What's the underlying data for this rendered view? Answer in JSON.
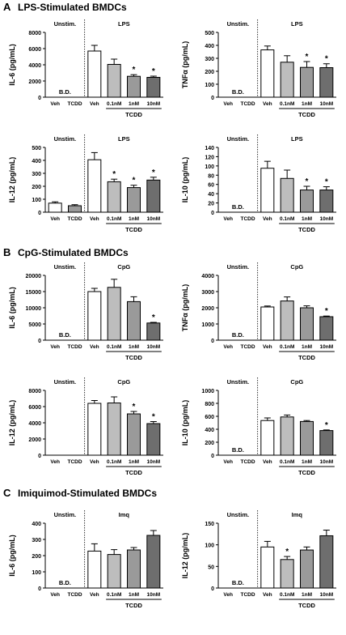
{
  "sections": [
    {
      "letter": "A",
      "title": "LPS-Stimulated BMDCs"
    },
    {
      "letter": "B",
      "title": "CpG-Stimulated BMDCs"
    },
    {
      "letter": "C",
      "title": "Imiquimod-Stimulated BMDCs"
    }
  ],
  "chart_data": [
    {
      "type": "bar",
      "panel": "A",
      "ylabel": "IL-6 (pg/mL)",
      "ylim": [
        0,
        8000
      ],
      "yticks": [
        0,
        2000,
        4000,
        6000,
        8000
      ],
      "yticklabels": [
        "0",
        "2000",
        "4000",
        "6000",
        "8000"
      ],
      "unstim_label": "Unstim.",
      "stim_label": "LPS",
      "treat_label": "TCDD",
      "bd_label": "B.D.",
      "star": "*",
      "categories": [
        "Veh",
        "TCDD",
        "Veh",
        "0.1nM",
        "1nM",
        "10nM"
      ],
      "values": [
        0,
        0,
        5700,
        4050,
        2580,
        2450
      ],
      "errors": [
        0,
        0,
        700,
        650,
        200,
        150
      ],
      "below_detection": [
        true,
        true,
        false,
        false,
        false,
        false
      ],
      "significant": [
        false,
        false,
        false,
        false,
        true,
        true
      ],
      "colors": [
        "#ffffff",
        "#ffffff",
        "#ffffff",
        "#bdbdbd",
        "#9a9a9a",
        "#6e6e6e"
      ]
    },
    {
      "type": "bar",
      "panel": "A",
      "ylabel": "TNFα (pg/mL)",
      "ylim": [
        0,
        500
      ],
      "yticks": [
        0,
        100,
        200,
        300,
        400,
        500
      ],
      "yticklabels": [
        "0",
        "100",
        "200",
        "300",
        "400",
        "500"
      ],
      "unstim_label": "Unstim.",
      "stim_label": "LPS",
      "treat_label": "TCDD",
      "bd_label": "B.D.",
      "star": "*",
      "categories": [
        "Veh",
        "TCDD",
        "Veh",
        "0.1nM",
        "1nM",
        "10nM"
      ],
      "values": [
        0,
        0,
        365,
        270,
        230,
        228
      ],
      "errors": [
        0,
        0,
        30,
        50,
        45,
        30
      ],
      "below_detection": [
        true,
        true,
        false,
        false,
        false,
        false
      ],
      "significant": [
        false,
        false,
        false,
        false,
        true,
        true
      ],
      "colors": [
        "#ffffff",
        "#ffffff",
        "#ffffff",
        "#bdbdbd",
        "#9a9a9a",
        "#6e6e6e"
      ]
    },
    {
      "type": "bar",
      "panel": "A",
      "ylabel": "IL-12 (pg/mL)",
      "ylim": [
        0,
        500
      ],
      "yticks": [
        0,
        100,
        200,
        300,
        400,
        500
      ],
      "yticklabels": [
        "0",
        "100",
        "200",
        "300",
        "400",
        "500"
      ],
      "unstim_label": "Unstim.",
      "stim_label": "LPS",
      "treat_label": "TCDD",
      "bd_label": "",
      "star": "*",
      "categories": [
        "Veh",
        "TCDD",
        "Veh",
        "0.1nM",
        "1nM",
        "10nM"
      ],
      "values": [
        70,
        50,
        405,
        235,
        190,
        248
      ],
      "errors": [
        10,
        8,
        55,
        20,
        18,
        22
      ],
      "below_detection": [
        false,
        false,
        false,
        false,
        false,
        false
      ],
      "significant": [
        false,
        false,
        false,
        true,
        true,
        true
      ],
      "colors": [
        "#ffffff",
        "#9a9a9a",
        "#ffffff",
        "#bdbdbd",
        "#9a9a9a",
        "#6e6e6e"
      ]
    },
    {
      "type": "bar",
      "panel": "A",
      "ylabel": "IL-10 (pg/mL)",
      "ylim": [
        0,
        140
      ],
      "yticks": [
        0,
        20,
        40,
        60,
        80,
        100,
        120,
        140
      ],
      "yticklabels": [
        "0",
        "20",
        "40",
        "60",
        "80",
        "100",
        "120",
        "140"
      ],
      "unstim_label": "Unstim.",
      "stim_label": "LPS",
      "treat_label": "TCDD",
      "bd_label": "B.D.",
      "star": "*",
      "categories": [
        "Veh",
        "TCDD",
        "Veh",
        "0.1nM",
        "1nM",
        "10nM"
      ],
      "values": [
        0,
        0,
        95,
        73,
        48,
        48
      ],
      "errors": [
        0,
        0,
        15,
        18,
        8,
        7
      ],
      "below_detection": [
        true,
        true,
        false,
        false,
        false,
        false
      ],
      "significant": [
        false,
        false,
        false,
        false,
        true,
        true
      ],
      "colors": [
        "#ffffff",
        "#ffffff",
        "#ffffff",
        "#bdbdbd",
        "#9a9a9a",
        "#6e6e6e"
      ]
    },
    {
      "type": "bar",
      "panel": "B",
      "ylabel": "IL-6 (pg/mL)",
      "ylim": [
        0,
        20000
      ],
      "yticks": [
        0,
        5000,
        10000,
        15000,
        20000
      ],
      "yticklabels": [
        "0",
        "5000",
        "10000",
        "15000",
        "20000"
      ],
      "unstim_label": "Unstim.",
      "stim_label": "CpG",
      "treat_label": "TCDD",
      "bd_label": "B.D.",
      "star": "*",
      "categories": [
        "Veh",
        "TCDD",
        "Veh",
        "0.1nM",
        "1nM",
        "10nM"
      ],
      "values": [
        0,
        0,
        15000,
        16300,
        11900,
        5300
      ],
      "errors": [
        0,
        0,
        1000,
        2500,
        1500,
        200
      ],
      "below_detection": [
        true,
        true,
        false,
        false,
        false,
        false
      ],
      "significant": [
        false,
        false,
        false,
        false,
        false,
        true
      ],
      "colors": [
        "#ffffff",
        "#ffffff",
        "#ffffff",
        "#bdbdbd",
        "#9a9a9a",
        "#6e6e6e"
      ]
    },
    {
      "type": "bar",
      "panel": "B",
      "ylabel": "TNFα (pg/mL)",
      "ylim": [
        0,
        4000
      ],
      "yticks": [
        0,
        1000,
        2000,
        3000,
        4000
      ],
      "yticklabels": [
        "0",
        "1000",
        "2000",
        "3000",
        "4000"
      ],
      "unstim_label": "Unstim.",
      "stim_label": "CpG",
      "treat_label": "TCDD",
      "bd_label": "B.D.",
      "star": "*",
      "categories": [
        "Veh",
        "TCDD",
        "Veh",
        "0.1nM",
        "1nM",
        "10nM"
      ],
      "values": [
        0,
        0,
        2050,
        2420,
        2000,
        1450
      ],
      "errors": [
        0,
        0,
        60,
        250,
        120,
        40
      ],
      "below_detection": [
        true,
        true,
        false,
        false,
        false,
        false
      ],
      "significant": [
        false,
        false,
        false,
        false,
        false,
        true
      ],
      "colors": [
        "#ffffff",
        "#ffffff",
        "#ffffff",
        "#bdbdbd",
        "#9a9a9a",
        "#6e6e6e"
      ]
    },
    {
      "type": "bar",
      "panel": "B",
      "ylabel": "IL-12 (pg/mL)",
      "ylim": [
        0,
        8000
      ],
      "yticks": [
        0,
        2000,
        4000,
        6000,
        8000
      ],
      "yticklabels": [
        "0",
        "2000",
        "4000",
        "6000",
        "8000"
      ],
      "unstim_label": "Unstim.",
      "stim_label": "CpG",
      "treat_label": "TCDD",
      "bd_label": "",
      "star": "*",
      "categories": [
        "Veh",
        "TCDD",
        "Veh",
        "0.1nM",
        "1nM",
        "10nM"
      ],
      "values": [
        0,
        0,
        6400,
        6450,
        5100,
        3900
      ],
      "errors": [
        0,
        0,
        350,
        750,
        300,
        250
      ],
      "below_detection": [
        true,
        true,
        false,
        false,
        false,
        false
      ],
      "significant": [
        false,
        false,
        false,
        false,
        true,
        true
      ],
      "colors": [
        "#ffffff",
        "#ffffff",
        "#ffffff",
        "#bdbdbd",
        "#9a9a9a",
        "#6e6e6e"
      ]
    },
    {
      "type": "bar",
      "panel": "B",
      "ylabel": "IL-10 (pg/mL)",
      "ylim": [
        0,
        1000
      ],
      "yticks": [
        0,
        200,
        400,
        600,
        800,
        1000
      ],
      "yticklabels": [
        "0",
        "200",
        "400",
        "600",
        "800",
        "1000"
      ],
      "unstim_label": "Unstim.",
      "stim_label": "CpG",
      "treat_label": "TCDD",
      "bd_label": "B.D.",
      "star": "*",
      "categories": [
        "Veh",
        "TCDD",
        "Veh",
        "0.1nM",
        "1nM",
        "10nM"
      ],
      "values": [
        0,
        0,
        535,
        590,
        520,
        380
      ],
      "errors": [
        0,
        0,
        40,
        30,
        15,
        10
      ],
      "below_detection": [
        true,
        true,
        false,
        false,
        false,
        false
      ],
      "significant": [
        false,
        false,
        false,
        false,
        false,
        true
      ],
      "colors": [
        "#ffffff",
        "#ffffff",
        "#ffffff",
        "#bdbdbd",
        "#9a9a9a",
        "#6e6e6e"
      ]
    },
    {
      "type": "bar",
      "panel": "C",
      "ylabel": "IL-6 (pg/mL)",
      "ylim": [
        0,
        400
      ],
      "yticks": [
        0,
        100,
        200,
        300,
        400
      ],
      "yticklabels": [
        "0",
        "100",
        "200",
        "300",
        "400"
      ],
      "unstim_label": "Unstim.",
      "stim_label": "Imq",
      "treat_label": "TCDD",
      "bd_label": "B.D.",
      "star": "*",
      "categories": [
        "Veh",
        "TCDD",
        "Veh",
        "0.1nM",
        "1nM",
        "10nM"
      ],
      "values": [
        0,
        0,
        228,
        207,
        235,
        325
      ],
      "errors": [
        0,
        0,
        45,
        30,
        15,
        30
      ],
      "below_detection": [
        true,
        true,
        false,
        false,
        false,
        false
      ],
      "significant": [
        false,
        false,
        false,
        false,
        false,
        false
      ],
      "colors": [
        "#ffffff",
        "#ffffff",
        "#ffffff",
        "#bdbdbd",
        "#9a9a9a",
        "#6e6e6e"
      ]
    },
    {
      "type": "bar",
      "panel": "C",
      "ylabel": "IL-12 (pg/mL)",
      "ylim": [
        0,
        150
      ],
      "yticks": [
        0,
        50,
        100,
        150
      ],
      "yticklabels": [
        "0",
        "50",
        "100",
        "150"
      ],
      "unstim_label": "Unstim.",
      "stim_label": "Imq",
      "treat_label": "TCDD",
      "bd_label": "B.D.",
      "star": "*",
      "categories": [
        "Veh",
        "TCDD",
        "Veh",
        "0.1nM",
        "1nM",
        "10nM"
      ],
      "values": [
        0,
        0,
        95,
        66,
        88,
        121
      ],
      "errors": [
        0,
        0,
        13,
        7,
        7,
        13
      ],
      "below_detection": [
        true,
        true,
        false,
        false,
        false,
        false
      ],
      "significant": [
        false,
        false,
        false,
        true,
        false,
        false
      ],
      "colors": [
        "#ffffff",
        "#ffffff",
        "#ffffff",
        "#bdbdbd",
        "#9a9a9a",
        "#6e6e6e"
      ]
    }
  ]
}
